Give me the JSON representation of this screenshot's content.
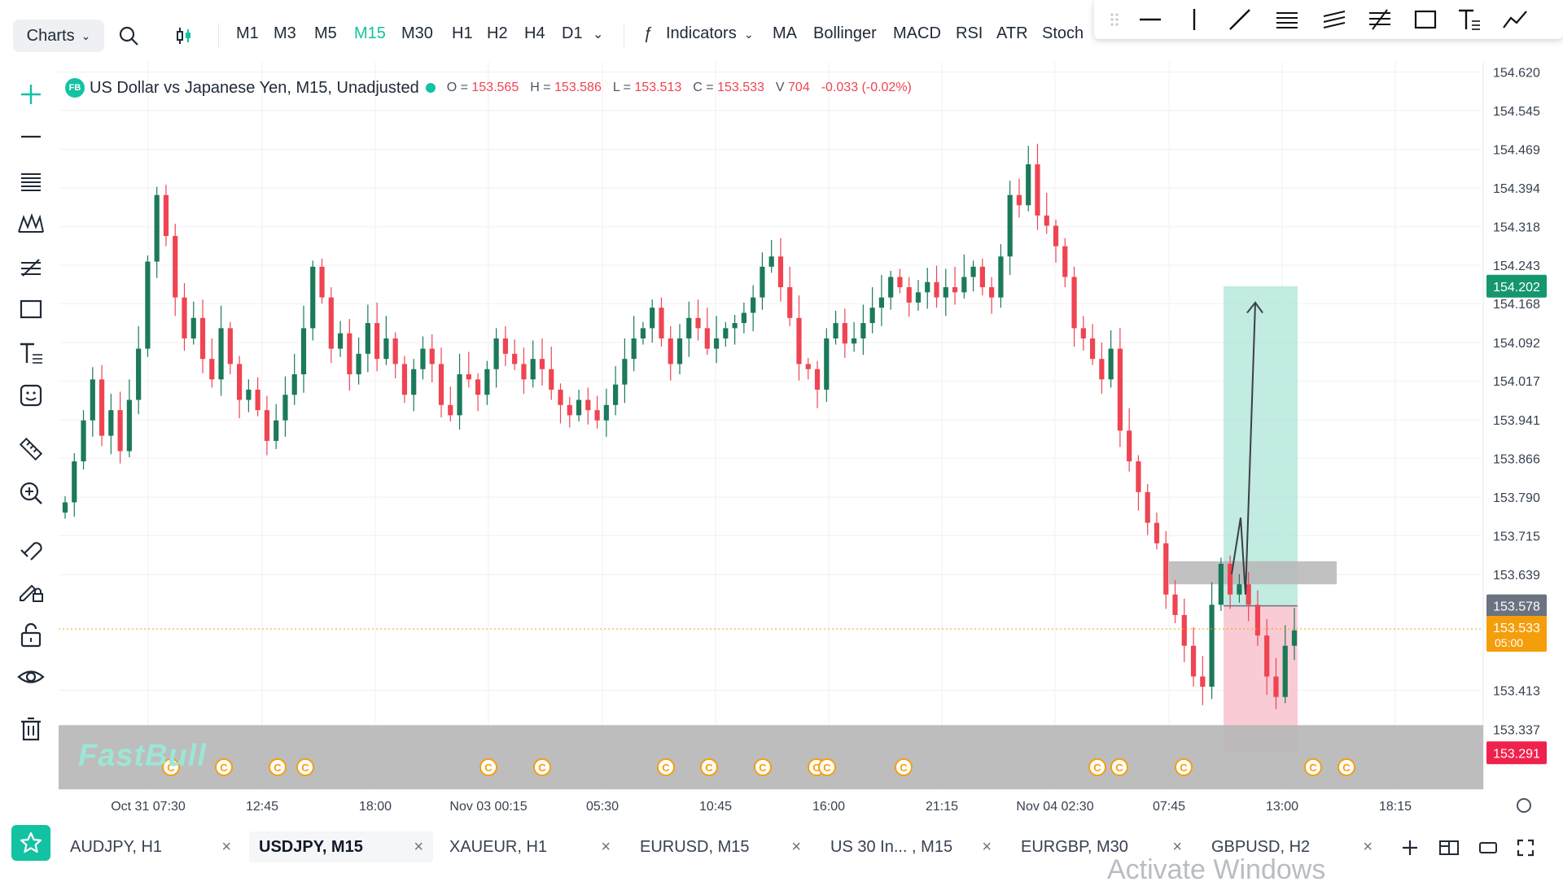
{
  "toolbar": {
    "charts_label": "Charts",
    "timeframes": [
      "M1",
      "M3",
      "M5",
      "M15",
      "M30",
      "H1",
      "H2",
      "H4",
      "D1"
    ],
    "active_timeframe": "M15",
    "indicators_label": "Indicators",
    "indicator_shortcuts": [
      "MA",
      "Bollinger",
      "MACD",
      "RSI",
      "ATR",
      "Stoch"
    ]
  },
  "legend": {
    "badge": "FB",
    "symbol": "US Dollar vs Japanese Yen, M15, Unadjusted",
    "open_label": "O =",
    "open": "153.565",
    "high_label": "H =",
    "high": "153.586",
    "low_label": "L =",
    "low": "153.513",
    "close_label": "C =",
    "close": "153.533",
    "volume_label": "V",
    "volume": "704",
    "change": "-0.033 (-0.02%)"
  },
  "colors": {
    "up": "#1b7a5a",
    "down": "#ef4452",
    "accent": "#13c2a3",
    "target_zone": "#a8e2d5",
    "stop_zone": "#f7b9c6",
    "supply_zone": "#b6b6b6",
    "current_price": "#f59e0b"
  },
  "chart_data": {
    "type": "candlestick",
    "symbol": "USDJPY",
    "timeframe": "M15",
    "y_axis_ticks": [
      154.62,
      154.545,
      154.469,
      154.394,
      154.318,
      154.243,
      154.168,
      154.092,
      154.017,
      153.941,
      153.866,
      153.79,
      153.715,
      153.639,
      153.413,
      153.337
    ],
    "ylim": [
      153.22,
      154.64
    ],
    "x_axis_ticks": [
      "Oct 31 07:30",
      "12:45",
      "18:00",
      "Nov 03 00:15",
      "05:30",
      "10:45",
      "16:00",
      "21:15",
      "Nov 04 02:30",
      "07:45",
      "13:00",
      "18:15"
    ],
    "closes": [
      153.78,
      153.86,
      153.94,
      154.02,
      153.91,
      153.96,
      153.88,
      153.98,
      154.08,
      154.25,
      154.38,
      154.3,
      154.18,
      154.1,
      154.14,
      154.06,
      154.02,
      154.12,
      154.05,
      153.98,
      154.0,
      153.96,
      153.9,
      153.94,
      153.99,
      154.03,
      154.12,
      154.24,
      154.18,
      154.08,
      154.11,
      154.03,
      154.07,
      154.13,
      154.06,
      154.1,
      154.05,
      153.99,
      154.04,
      154.08,
      154.05,
      153.97,
      153.95,
      154.03,
      154.02,
      153.99,
      154.04,
      154.1,
      154.07,
      154.05,
      154.02,
      154.06,
      154.04,
      154.0,
      153.97,
      153.95,
      153.98,
      153.96,
      153.94,
      153.97,
      154.01,
      154.06,
      154.1,
      154.12,
      154.16,
      154.1,
      154.05,
      154.1,
      154.14,
      154.12,
      154.08,
      154.1,
      154.12,
      154.13,
      154.15,
      154.18,
      154.24,
      154.26,
      154.2,
      154.14,
      154.05,
      154.04,
      154.0,
      154.1,
      154.13,
      154.09,
      154.1,
      154.13,
      154.16,
      154.18,
      154.22,
      154.2,
      154.17,
      154.19,
      154.21,
      154.18,
      154.2,
      154.19,
      154.22,
      154.24,
      154.2,
      154.18,
      154.26,
      154.38,
      154.36,
      154.44,
      154.34,
      154.32,
      154.28,
      154.22,
      154.12,
      154.1,
      154.06,
      154.02,
      154.08,
      153.92,
      153.86,
      153.8,
      153.74,
      153.7,
      153.6,
      153.56,
      153.5,
      153.44,
      153.42,
      153.58,
      153.66,
      153.6,
      153.62,
      153.58,
      153.52,
      153.44,
      153.4,
      153.5,
      153.53
    ],
    "trade_setup": {
      "entry": 153.578,
      "target": 154.202,
      "stop": 153.291,
      "current_price": 153.533,
      "countdown": "05:00"
    },
    "supply_zone": [
      153.62,
      153.665
    ],
    "demand_zone": [
      153.22,
      153.345
    ],
    "price_labels": {
      "target": "154.202",
      "entry": "153.578",
      "current": "153.533",
      "stop": "153.291"
    }
  },
  "tabs": [
    {
      "label": "AUDJPY, H1"
    },
    {
      "label": "USDJPY, M15"
    },
    {
      "label": "XAUEUR, H1"
    },
    {
      "label": "EURUSD, M15"
    },
    {
      "label": "US 30 In... , M15"
    },
    {
      "label": "EURGBP, M30"
    },
    {
      "label": "GBPUSD, H2"
    }
  ],
  "active_tab": "USDJPY, M15",
  "watermark": "FastBull",
  "overlay_text": "Activate Windows"
}
